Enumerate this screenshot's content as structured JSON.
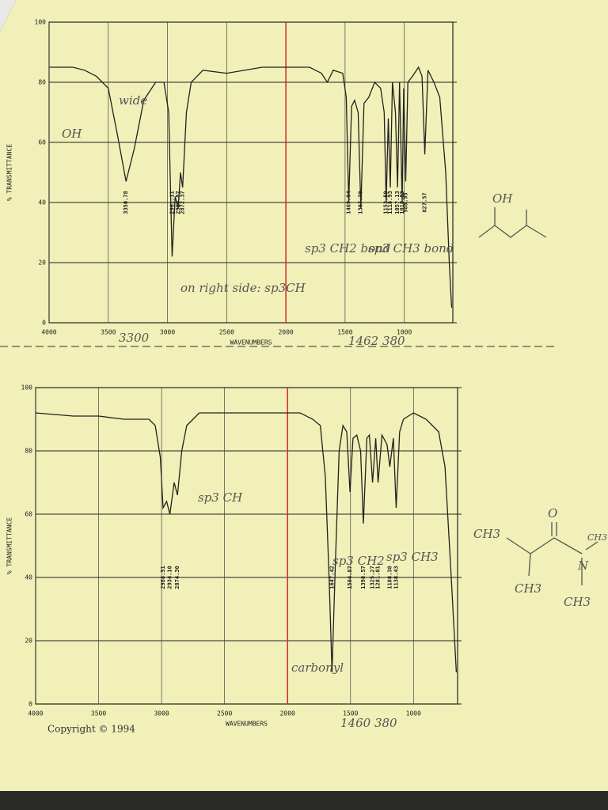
{
  "chart_data": [
    {
      "type": "line",
      "ylabel": "% TRANSMITTANCE",
      "xlabel": "WAVENUMBERS",
      "xlim": [
        4000,
        590
      ],
      "ylim": [
        0,
        100
      ],
      "xticks": [
        4000,
        3500,
        3000,
        2500,
        2000,
        1500,
        1000
      ],
      "yticks": [
        0,
        20,
        40,
        60,
        80,
        100
      ],
      "grid": true,
      "divider": {
        "value": 2000,
        "color": "#d42a2a"
      },
      "series": [
        {
          "color": "#222222",
          "x": [
            4000,
            3800,
            3700,
            3600,
            3500,
            3420,
            3350,
            3280,
            3200,
            3100,
            3030,
            2990,
            2961,
            2935,
            2910,
            2890,
            2872,
            2840,
            2800,
            2700,
            2500,
            2200,
            2000,
            1800,
            1700,
            1650,
            1600,
            1520,
            1490,
            1469,
            1445,
            1420,
            1390,
            1367,
            1340,
            1300,
            1250,
            1200,
            1170,
            1153,
            1135,
            1118,
            1100,
            1075,
            1057,
            1040,
            1018,
            1005,
            988,
            970,
            930,
            880,
            850,
            827,
            800,
            750,
            700,
            650,
            620,
            600
          ],
          "values": [
            85,
            85,
            84,
            82,
            78,
            62,
            47,
            58,
            74,
            80,
            80,
            70,
            22,
            42,
            38,
            50,
            45,
            70,
            80,
            84,
            83,
            85,
            85,
            85,
            83,
            80,
            84,
            83,
            75,
            40,
            72,
            74,
            70,
            38,
            73,
            75,
            80,
            78,
            70,
            40,
            68,
            45,
            80,
            70,
            45,
            80,
            40,
            78,
            47,
            80,
            82,
            85,
            82,
            56,
            84,
            80,
            75,
            50,
            20,
            5
          ]
        }
      ],
      "peak_labels": [
        {
          "value": 3350.78,
          "label": "3350.78"
        },
        {
          "value": 2961.11,
          "label": "2961.11"
        },
        {
          "value": 2910.87,
          "label": "2910.87"
        },
        {
          "value": 2872.37,
          "label": "2872.37"
        },
        {
          "value": 1469.94,
          "label": "1469.94"
        },
        {
          "value": 1367.78,
          "label": "1367.78"
        },
        {
          "value": 1153.59,
          "label": "1153.59"
        },
        {
          "value": 1118.93,
          "label": "1118.93"
        },
        {
          "value": 1057.13,
          "label": "1057.13"
        },
        {
          "value": 1018.83,
          "label": "1018.83"
        },
        {
          "value": 988.95,
          "label": "988.95"
        },
        {
          "value": 827.57,
          "label": "827.57"
        }
      ],
      "annotations": [
        "wide",
        "OH",
        "on right side: sp3CH",
        "sp3 CH2 bond",
        "sp3 CH3 bond",
        "3300",
        "1462 380"
      ]
    },
    {
      "type": "line",
      "ylabel": "% TRANSMITTANCE",
      "xlabel": "WAVENUMBERS",
      "xlim": [
        4000,
        650
      ],
      "ylim": [
        0,
        100
      ],
      "xticks": [
        4000,
        3500,
        3000,
        2500,
        2000,
        1500,
        1000
      ],
      "yticks": [
        0,
        20,
        40,
        60,
        80,
        100
      ],
      "grid": true,
      "divider": {
        "value": 2000,
        "color": "#d42a2a"
      },
      "series": [
        {
          "color": "#222222",
          "x": [
            4000,
            3700,
            3500,
            3300,
            3200,
            3100,
            3050,
            3010,
            2988,
            2960,
            2934,
            2900,
            2874,
            2840,
            2800,
            2700,
            2400,
            2000,
            1900,
            1800,
            1740,
            1700,
            1670,
            1647,
            1620,
            1590,
            1560,
            1530,
            1504,
            1480,
            1450,
            1420,
            1398,
            1370,
            1350,
            1325,
            1300,
            1281,
            1250,
            1210,
            1188,
            1160,
            1138,
            1110,
            1080,
            1000,
            950,
            900,
            850,
            800,
            750,
            700,
            660
          ],
          "values": [
            92,
            91,
            91,
            90,
            90,
            90,
            88,
            78,
            62,
            64,
            60,
            70,
            66,
            80,
            88,
            92,
            92,
            92,
            92,
            90,
            88,
            72,
            40,
            10,
            45,
            80,
            88,
            86,
            67,
            84,
            85,
            80,
            57,
            84,
            85,
            70,
            84,
            70,
            85,
            82,
            75,
            84,
            62,
            86,
            90,
            92,
            91,
            90,
            88,
            86,
            75,
            40,
            10
          ]
        }
      ],
      "peak_labels": [
        {
          "value": 2988.51,
          "label": "2988.51"
        },
        {
          "value": 2934.1,
          "label": "2934.10"
        },
        {
          "value": 2874.3,
          "label": "2874.30"
        },
        {
          "value": 1647.42,
          "label": "1647.42"
        },
        {
          "value": 1504.87,
          "label": "1504.87"
        },
        {
          "value": 1398.57,
          "label": "1398.57"
        },
        {
          "value": 1325.27,
          "label": "1325.27"
        },
        {
          "value": 1281.01,
          "label": "1281.01"
        },
        {
          "value": 1188.38,
          "label": "1188.38"
        },
        {
          "value": 1138.43,
          "label": "1138.43"
        }
      ],
      "annotations": [
        "sp3 CH",
        "sp3 CH2",
        "sp3 CH3",
        "carbonyl",
        "1460 380"
      ]
    }
  ],
  "structures": [
    {
      "labels": [
        "OH"
      ]
    },
    {
      "labels": [
        "CH3",
        "O",
        "N",
        "CH3",
        "CH3",
        "CH3"
      ]
    }
  ],
  "footer": "Copyright © 1994"
}
